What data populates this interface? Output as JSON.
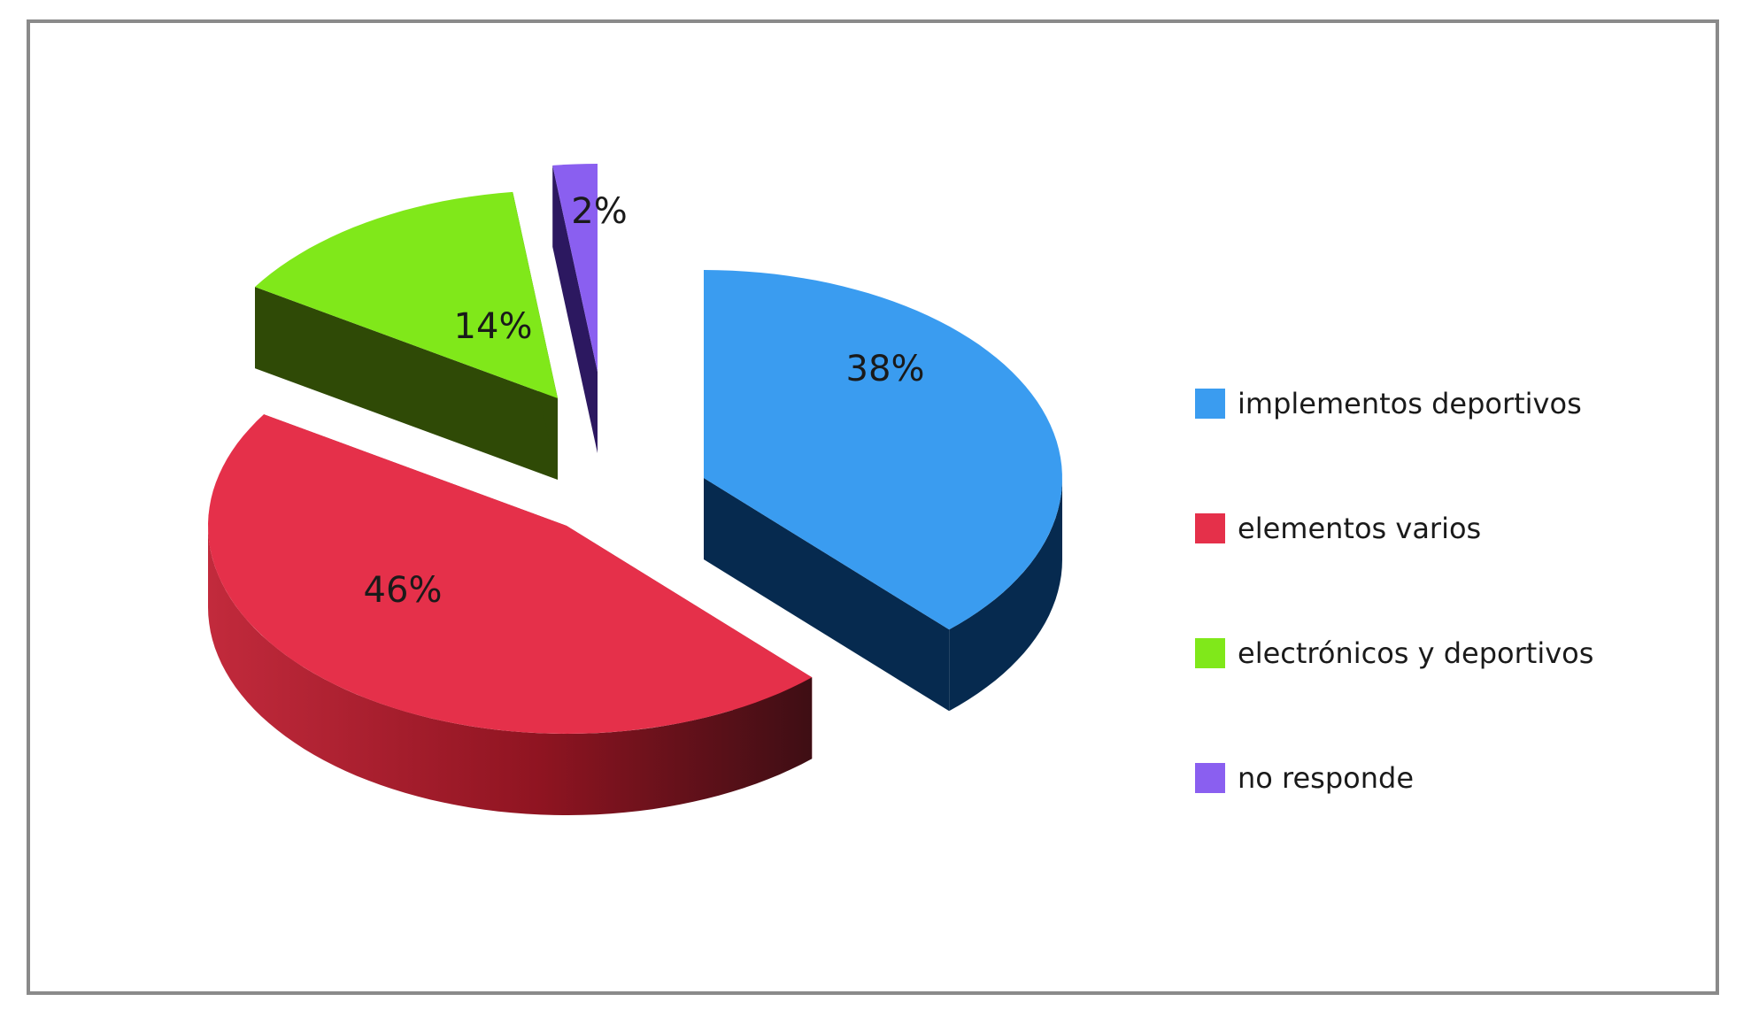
{
  "chart_data": {
    "type": "pie",
    "style": "3d-exploded",
    "legend_position": "right",
    "slices": [
      {
        "name": "implementos deportivos",
        "value": 38,
        "label": "38%",
        "color": "#3a9cf0",
        "side_color": "#062a4f"
      },
      {
        "name": "elementos varios",
        "value": 46,
        "label": "46%",
        "color": "#e5304a",
        "side_color": "#9e1624"
      },
      {
        "name": "electrónicos y deportivos",
        "value": 14,
        "label": "14%",
        "color": "#80e81a",
        "side_color": "#2f4a06"
      },
      {
        "name": "no responde",
        "value": 2,
        "label": "2%",
        "color": "#8a5ff0",
        "side_color": "#2c1860"
      }
    ]
  }
}
